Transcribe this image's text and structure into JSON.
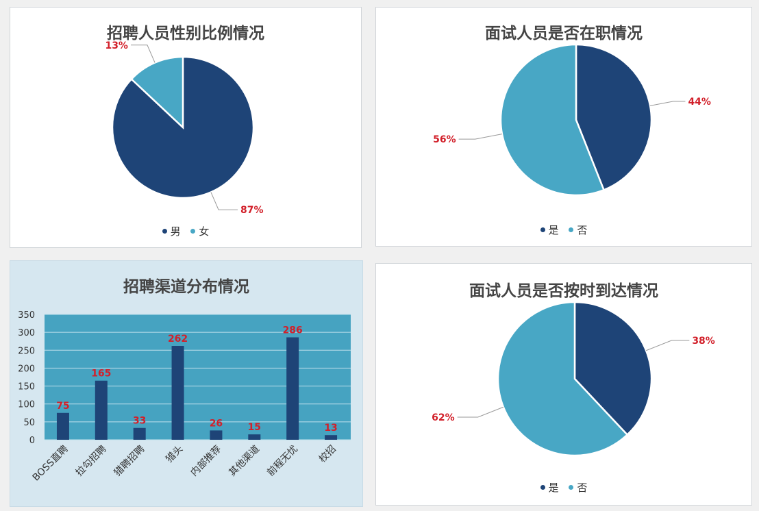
{
  "colors": {
    "dark": "#1e4477",
    "light": "#48a7c5",
    "label": "#d2202a",
    "plot_bg": "#46a3c1",
    "bar": "#1e4477"
  },
  "chart_data": [
    {
      "type": "pie",
      "title": "招聘人员性别比例情况",
      "labels": [
        "男",
        "女"
      ],
      "values": [
        87,
        13
      ],
      "value_labels": [
        "87%",
        "13%"
      ],
      "legend_position": "bottom"
    },
    {
      "type": "pie",
      "title": "面试人员是否在职情况",
      "labels": [
        "是",
        "否"
      ],
      "values": [
        44,
        56
      ],
      "value_labels": [
        "44%",
        "56%"
      ],
      "legend_position": "bottom"
    },
    {
      "type": "bar",
      "title": "招聘渠道分布情况",
      "categories": [
        "BOSS直聘",
        "拉勾招聘",
        "猎聘招聘",
        "猎头",
        "内部推荐",
        "其他渠道",
        "前程无忧",
        "校招"
      ],
      "values": [
        75,
        165,
        33,
        262,
        26,
        15,
        286,
        13
      ],
      "value_labels": [
        "75",
        "165",
        "33",
        "262",
        "26",
        "15",
        "286",
        "13"
      ],
      "ylim": [
        0,
        350
      ],
      "yticks": [
        "0",
        "50",
        "100",
        "150",
        "200",
        "250",
        "300",
        "350"
      ],
      "grid": true
    },
    {
      "type": "pie",
      "title": "面试人员是否按时到达情况",
      "labels": [
        "是",
        "否"
      ],
      "values": [
        38,
        62
      ],
      "value_labels": [
        "38%",
        "62%"
      ],
      "legend_position": "bottom"
    }
  ]
}
